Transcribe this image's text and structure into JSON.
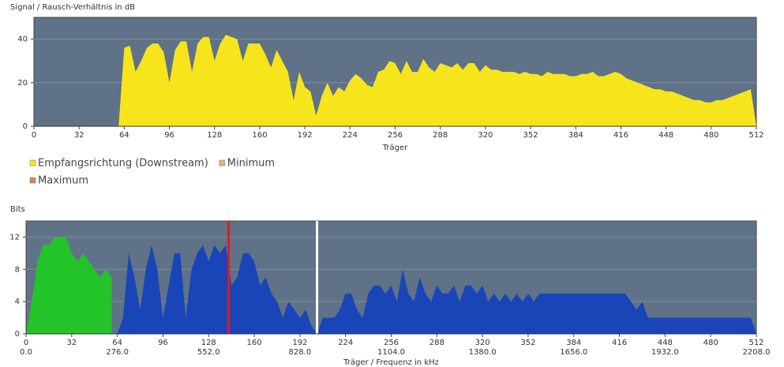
{
  "chart_data": [
    {
      "type": "area",
      "title": "Signal / Rausch-Verhältnis in dB",
      "xlabel": "Träger",
      "xlim": [
        0,
        512
      ],
      "ylim": [
        0,
        50
      ],
      "xticks": [
        0,
        32,
        64,
        96,
        128,
        160,
        192,
        224,
        256,
        288,
        320,
        352,
        384,
        416,
        448,
        480,
        512
      ],
      "yticks": [
        0,
        20,
        40
      ],
      "grid": true,
      "background": "#5f7287",
      "series": [
        {
          "name": "Empfangsrichtung (Downstream)",
          "color": "#f7e51b",
          "x": [
            0,
            4,
            8,
            12,
            16,
            20,
            24,
            28,
            32,
            36,
            40,
            44,
            48,
            52,
            56,
            60,
            64,
            68,
            72,
            76,
            80,
            84,
            88,
            92,
            96,
            100,
            104,
            108,
            112,
            116,
            120,
            124,
            128,
            132,
            136,
            140,
            144,
            148,
            152,
            156,
            160,
            164,
            168,
            172,
            176,
            180,
            184,
            188,
            192,
            196,
            200,
            204,
            208,
            212,
            216,
            220,
            224,
            228,
            232,
            236,
            240,
            244,
            248,
            252,
            256,
            260,
            264,
            268,
            272,
            276,
            280,
            284,
            288,
            292,
            296,
            300,
            304,
            308,
            312,
            316,
            320,
            324,
            328,
            332,
            336,
            340,
            344,
            348,
            352,
            356,
            360,
            364,
            368,
            372,
            376,
            380,
            384,
            388,
            392,
            396,
            400,
            404,
            408,
            412,
            416,
            420,
            424,
            428,
            432,
            436,
            440,
            444,
            448,
            452,
            456,
            460,
            464,
            468,
            472,
            476,
            480,
            484,
            488,
            492,
            496,
            500,
            504,
            508,
            512
          ],
          "values": [
            0,
            0,
            0,
            0,
            0,
            0,
            0,
            0,
            0,
            0,
            0,
            0,
            0,
            0,
            0,
            0,
            36,
            37,
            25,
            30,
            36,
            38,
            38,
            34,
            20,
            35,
            39,
            39,
            25,
            38,
            41,
            41,
            30,
            38,
            42,
            41,
            40,
            30,
            38,
            38,
            38,
            33,
            27,
            35,
            30,
            25,
            12,
            25,
            18,
            16,
            5,
            14,
            20,
            14,
            18,
            16,
            21,
            24,
            22,
            19,
            18,
            25,
            26,
            30,
            29,
            24,
            30,
            25,
            25,
            31,
            27,
            25,
            29,
            28,
            27,
            29,
            26,
            29,
            29,
            25,
            28,
            26,
            26,
            25,
            25,
            25,
            24,
            25,
            24,
            24,
            23,
            25,
            24,
            24,
            24,
            23,
            23,
            24,
            24,
            25,
            23,
            23,
            24,
            25,
            24,
            22,
            21,
            20,
            19,
            18,
            17,
            17,
            16,
            16,
            15,
            14,
            13,
            12,
            12,
            11,
            11,
            12,
            12,
            13,
            14,
            15,
            16,
            17,
            0
          ]
        },
        {
          "name": "Minimum",
          "color": "#e6b27a"
        },
        {
          "name": "Maximum",
          "color": "#e0804a"
        }
      ]
    },
    {
      "type": "area",
      "title": "Bits",
      "xlabel": "Träger / Frequenz in kHz",
      "xlim": [
        0,
        512
      ],
      "ylim": [
        0,
        14
      ],
      "x2lim": [
        0,
        2208
      ],
      "xticks": [
        0,
        32,
        64,
        96,
        128,
        160,
        192,
        224,
        256,
        288,
        320,
        352,
        384,
        416,
        448,
        480,
        512
      ],
      "x2ticks": [
        {
          "value": 0,
          "label": "0.0"
        },
        {
          "value": 276,
          "label": "276.0"
        },
        {
          "value": 552,
          "label": "552.0"
        },
        {
          "value": 828,
          "label": "828.0"
        },
        {
          "value": 1104,
          "label": "1104.0"
        },
        {
          "value": 1380,
          "label": "1380.0"
        },
        {
          "value": 1656,
          "label": "1656.0"
        },
        {
          "value": 1932,
          "label": "1932.0"
        },
        {
          "value": 2208,
          "label": "2208.0"
        }
      ],
      "yticks": [
        0,
        4,
        8,
        12
      ],
      "grid": true,
      "background": "#5f7287",
      "series": [
        {
          "color": "#22c42a",
          "x": [
            0,
            4,
            8,
            12,
            16,
            20,
            24,
            28,
            32,
            36,
            40,
            44,
            48,
            52,
            56,
            60
          ],
          "values": [
            0,
            4,
            9,
            11,
            11,
            12,
            12,
            12,
            10,
            9,
            10,
            9,
            8,
            7,
            8,
            7
          ]
        },
        {
          "color": "#1a45b8",
          "x": [
            64,
            68,
            72,
            76,
            80,
            84,
            88,
            92,
            96,
            100,
            104,
            108,
            112,
            116,
            120,
            124,
            128,
            132,
            136,
            140,
            144,
            148,
            152,
            156,
            160,
            164,
            168,
            172,
            176,
            180,
            184,
            188,
            192,
            196,
            200,
            204,
            208,
            212,
            216,
            220,
            224,
            228,
            232,
            236,
            240,
            244,
            248,
            252,
            256,
            260,
            264,
            268,
            272,
            276,
            280,
            284,
            288,
            292,
            296,
            300,
            304,
            308,
            312,
            316,
            320,
            324,
            328,
            332,
            336,
            340,
            344,
            348,
            352,
            356,
            360,
            364,
            368,
            372,
            376,
            380,
            384,
            388,
            392,
            396,
            400,
            404,
            408,
            412,
            416,
            420,
            424,
            428,
            432,
            436,
            440,
            444,
            448,
            452,
            456,
            460,
            464,
            468,
            472,
            476,
            480,
            484,
            488,
            492,
            496,
            500,
            504,
            508,
            512
          ],
          "values": [
            0,
            2,
            10,
            7,
            3,
            8,
            11,
            8,
            2,
            6,
            10,
            10,
            2,
            8,
            10,
            11,
            9,
            11,
            10,
            11,
            6,
            7,
            10,
            10,
            9,
            6,
            7,
            5,
            4,
            2,
            4,
            3,
            2,
            3,
            1,
            0,
            2,
            2,
            2,
            3,
            5,
            5,
            3,
            2,
            5,
            6,
            6,
            5,
            6,
            4,
            8,
            5,
            4,
            7,
            5,
            4,
            6,
            5,
            5,
            6,
            4,
            6,
            6,
            5,
            6,
            4,
            5,
            4,
            5,
            4,
            5,
            4,
            5,
            4,
            5,
            5,
            5,
            5,
            5,
            5,
            5,
            5,
            5,
            5,
            5,
            5,
            5,
            5,
            5,
            5,
            4,
            3,
            4,
            2,
            2,
            2,
            2,
            2,
            2,
            2,
            2,
            2,
            2,
            2,
            2,
            2,
            2,
            2,
            2,
            2,
            2,
            2,
            0
          ]
        }
      ],
      "markers": [
        {
          "x": 142,
          "color": "#e01b1b"
        },
        {
          "x": 204,
          "color": "#ffffff"
        }
      ]
    }
  ]
}
